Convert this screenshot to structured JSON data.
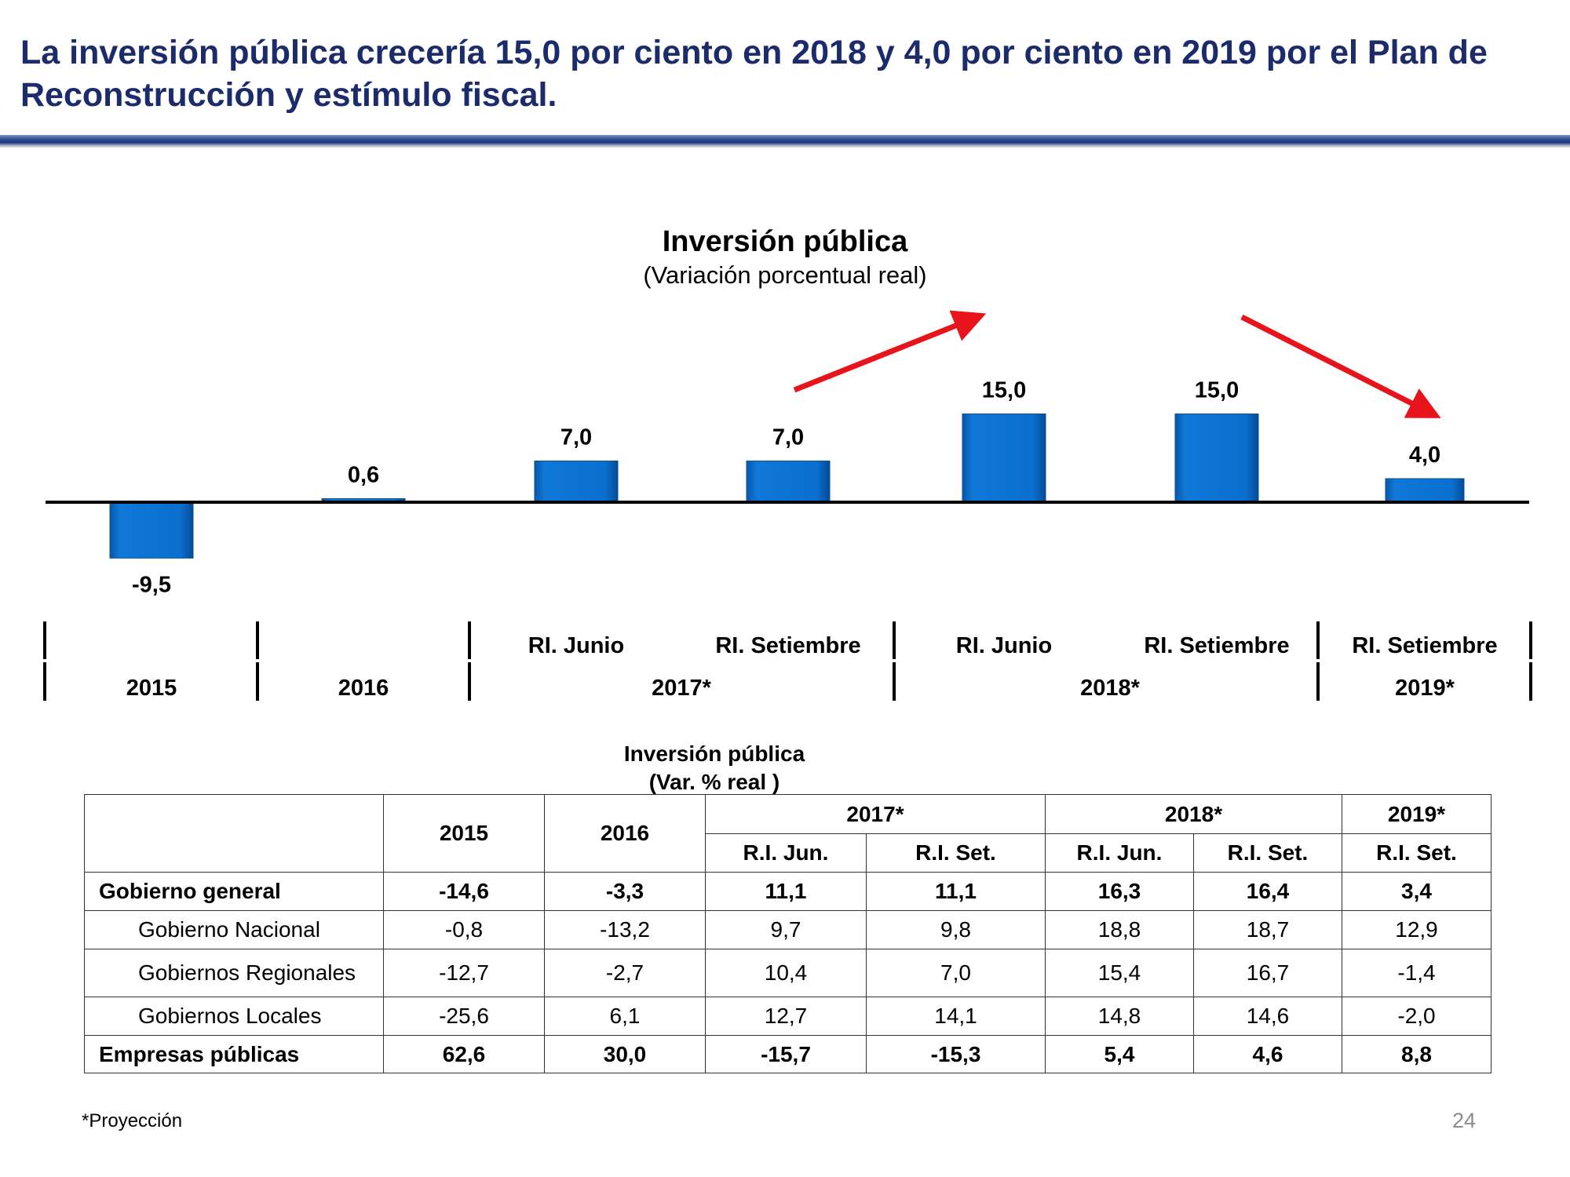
{
  "slide": {
    "title": "La inversión pública crecería 15,0 por ciento en 2018 y 4,0 por ciento en 2019 por el Plan de Reconstrucción y estímulo fiscal.",
    "footnote": "*Proyección",
    "page_number": "24"
  },
  "colors": {
    "title": "#1b2b6b",
    "bar": "#0a6fcf",
    "arrow": "#e8141c"
  },
  "chart_data": {
    "type": "bar",
    "title": "Inversión pública",
    "subtitle": "(Variación porcentual real)",
    "categories": [
      "2015",
      "2016",
      "RI. Junio",
      "RI. Setiembre",
      "RI. Junio",
      "RI. Setiembre",
      "RI. Setiembre"
    ],
    "values": [
      -9.5,
      0.6,
      7.0,
      7.0,
      15.0,
      15.0,
      4.0
    ],
    "value_labels": [
      "-9,5",
      "0,6",
      "7,0",
      "7,0",
      "15,0",
      "15,0",
      "4,0"
    ],
    "group_labels": [
      "2015",
      "2016",
      "2017*",
      "2018*",
      "2019*"
    ],
    "annotations": [
      "upward red arrow toward 2018",
      "downward red arrow toward 2019"
    ],
    "grid": false
  },
  "table": {
    "title_line1": "Inversión pública",
    "title_line2": "(Var. % real )",
    "header": {
      "y2015": "2015",
      "y2016": "2016",
      "y2017": "2017*",
      "y2018": "2018*",
      "y2019": "2019*",
      "ri_jun": "R.I. Jun.",
      "ri_set": "R.I. Set."
    },
    "rows": [
      {
        "label": "Gobierno general",
        "values": [
          "-14,6",
          "-3,3",
          "11,1",
          "11,1",
          "16,3",
          "16,4",
          "3,4"
        ]
      },
      {
        "label": "Gobierno Nacional",
        "values": [
          "-0,8",
          "-13,2",
          "9,7",
          "9,8",
          "18,8",
          "18,7",
          "12,9"
        ]
      },
      {
        "label": "Gobiernos Regionales",
        "values": [
          "-12,7",
          "-2,7",
          "10,4",
          "7,0",
          "15,4",
          "16,7",
          "-1,4"
        ]
      },
      {
        "label": "Gobiernos Locales",
        "values": [
          "-25,6",
          "6,1",
          "12,7",
          "14,1",
          "14,8",
          "14,6",
          "-2,0"
        ]
      },
      {
        "label": "Empresas públicas",
        "values": [
          "62,6",
          "30,0",
          "-15,7",
          "-15,3",
          "5,4",
          "4,6",
          "8,8"
        ]
      }
    ]
  }
}
